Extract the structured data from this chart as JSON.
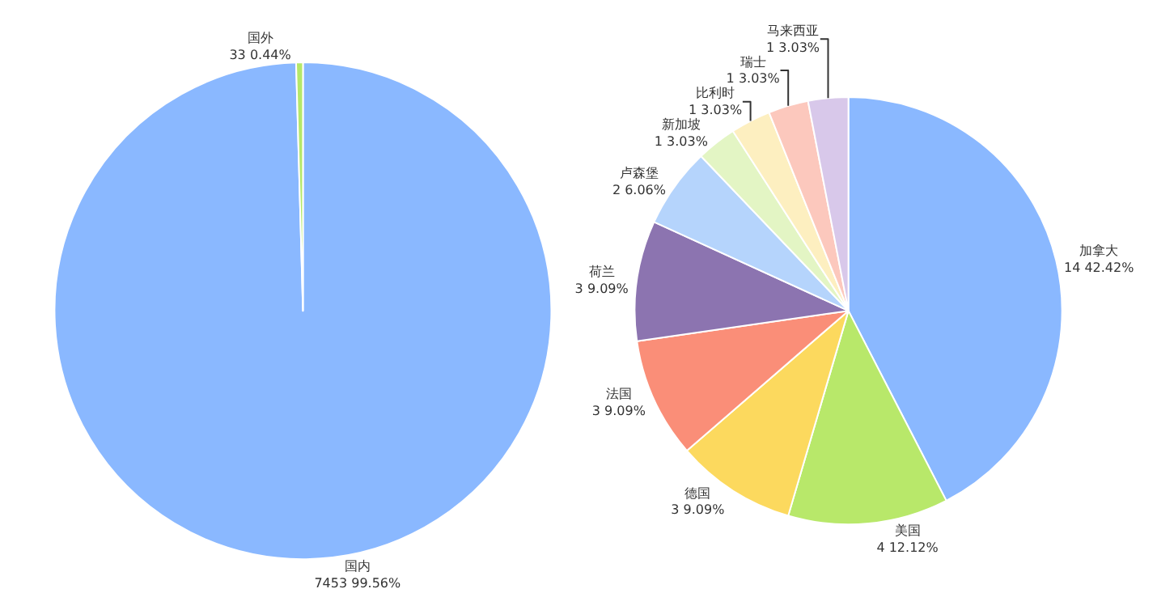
{
  "chart_data": [
    {
      "type": "pie",
      "categories": [
        "国内",
        "国外"
      ],
      "values": [
        7453,
        33
      ],
      "value_labels": [
        "7453 99.56%",
        "33 0.44%"
      ],
      "colors": [
        "#8ab8ff",
        "#b5e86a"
      ]
    },
    {
      "type": "pie",
      "categories": [
        "加拿大",
        "美国",
        "德国",
        "法国",
        "荷兰",
        "卢森堡",
        "新加坡",
        "比利时",
        "瑞士",
        "马来西亚"
      ],
      "values": [
        14,
        4,
        3,
        3,
        3,
        2,
        1,
        1,
        1,
        1
      ],
      "value_labels": [
        "14 42.42%",
        "4 12.12%",
        "3 9.09%",
        "3 9.09%",
        "3 9.09%",
        "2 6.06%",
        "1 3.03%",
        "1 3.03%",
        "1 3.03%",
        "1 3.03%"
      ],
      "colors": [
        "#8ab8ff",
        "#b8e86a",
        "#fcd95e",
        "#fa8e78",
        "#8c74b0",
        "#b5d4fc",
        "#e3f5c4",
        "#fdefc0",
        "#fcc8bd",
        "#d8c8ea"
      ]
    }
  ]
}
